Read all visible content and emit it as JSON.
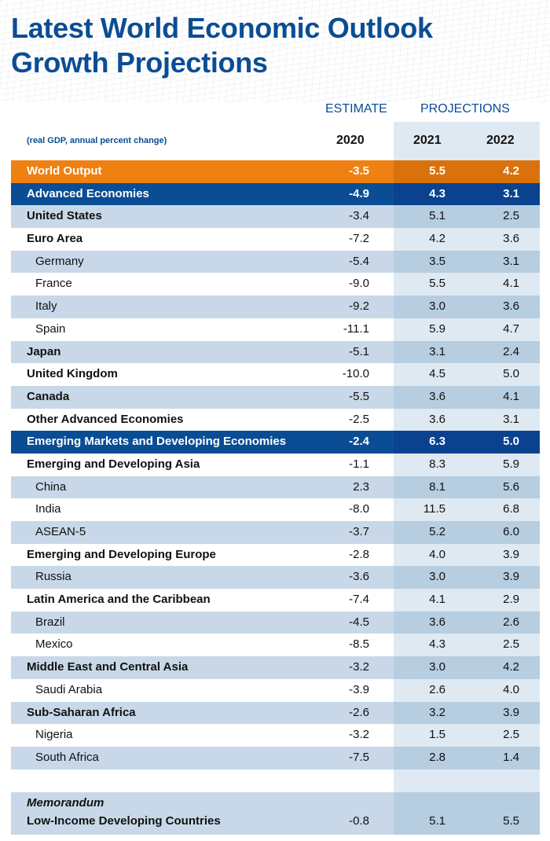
{
  "title_line1": "Latest World Economic Outlook",
  "title_line2": "Growth Projections",
  "header": {
    "estimate": "ESTIMATE",
    "projections": "PROJECTIONS",
    "note": "(real GDP, annual percent change)",
    "years": [
      "2020",
      "2021",
      "2022"
    ]
  },
  "colors": {
    "title": "#0a4d94",
    "world_row": "#ef8012",
    "group_row": "#0a4d94",
    "shaded_row": "#c8d8e8"
  },
  "chart_data": {
    "type": "table",
    "title": "Latest World Economic Outlook Growth Projections",
    "subtitle": "(real GDP, annual percent change)",
    "columns": [
      "2020",
      "2021",
      "2022"
    ],
    "column_groups": [
      {
        "label": "ESTIMATE",
        "columns": [
          "2020"
        ]
      },
      {
        "label": "PROJECTIONS",
        "columns": [
          "2021",
          "2022"
        ]
      }
    ],
    "rows": [
      {
        "label": "World Output",
        "style": "world",
        "values": [
          "-3.5",
          "5.5",
          "4.2"
        ]
      },
      {
        "label": "Advanced Economies",
        "style": "group",
        "values": [
          "-4.9",
          "4.3",
          "3.1"
        ]
      },
      {
        "label": "United States",
        "style": "bold",
        "values": [
          "-3.4",
          "5.1",
          "2.5"
        ]
      },
      {
        "label": "Euro Area",
        "style": "bold",
        "values": [
          "-7.2",
          "4.2",
          "3.6"
        ]
      },
      {
        "label": "Germany",
        "style": "indent",
        "values": [
          "-5.4",
          "3.5",
          "3.1"
        ]
      },
      {
        "label": "France",
        "style": "indent",
        "values": [
          "-9.0",
          "5.5",
          "4.1"
        ]
      },
      {
        "label": "Italy",
        "style": "indent",
        "values": [
          "-9.2",
          "3.0",
          "3.6"
        ]
      },
      {
        "label": "Spain",
        "style": "indent",
        "values": [
          "-11.1",
          "5.9",
          "4.7"
        ]
      },
      {
        "label": "Japan",
        "style": "bold",
        "values": [
          "-5.1",
          "3.1",
          "2.4"
        ]
      },
      {
        "label": "United Kingdom",
        "style": "bold",
        "values": [
          "-10.0",
          "4.5",
          "5.0"
        ]
      },
      {
        "label": "Canada",
        "style": "bold",
        "values": [
          "-5.5",
          "3.6",
          "4.1"
        ]
      },
      {
        "label": "Other Advanced Economies",
        "style": "bold",
        "values": [
          "-2.5",
          "3.6",
          "3.1"
        ]
      },
      {
        "label": "Emerging Markets and Developing Economies",
        "style": "group",
        "values": [
          "-2.4",
          "6.3",
          "5.0"
        ]
      },
      {
        "label": "Emerging and Developing Asia",
        "style": "bold",
        "values": [
          "-1.1",
          "8.3",
          "5.9"
        ]
      },
      {
        "label": "China",
        "style": "indent",
        "values": [
          "2.3",
          "8.1",
          "5.6"
        ]
      },
      {
        "label": "India",
        "style": "indent",
        "values": [
          "-8.0",
          "11.5",
          "6.8"
        ]
      },
      {
        "label": "ASEAN-5",
        "style": "indent",
        "values": [
          "-3.7",
          "5.2",
          "6.0"
        ]
      },
      {
        "label": "Emerging and Developing Europe",
        "style": "bold",
        "values": [
          "-2.8",
          "4.0",
          "3.9"
        ]
      },
      {
        "label": "Russia",
        "style": "indent",
        "values": [
          "-3.6",
          "3.0",
          "3.9"
        ]
      },
      {
        "label": "Latin America and the Caribbean",
        "style": "bold",
        "values": [
          "-7.4",
          "4.1",
          "2.9"
        ]
      },
      {
        "label": "Brazil",
        "style": "indent",
        "values": [
          "-4.5",
          "3.6",
          "2.6"
        ]
      },
      {
        "label": "Mexico",
        "style": "indent",
        "values": [
          "-8.5",
          "4.3",
          "2.5"
        ]
      },
      {
        "label": "Middle East and Central Asia",
        "style": "bold",
        "values": [
          "-3.2",
          "3.0",
          "4.2"
        ]
      },
      {
        "label": "Saudi Arabia",
        "style": "indent",
        "values": [
          "-3.9",
          "2.6",
          "4.0"
        ]
      },
      {
        "label": "Sub-Saharan Africa",
        "style": "bold",
        "values": [
          "-2.6",
          "3.2",
          "3.9"
        ]
      },
      {
        "label": "Nigeria",
        "style": "indent",
        "values": [
          "-3.2",
          "1.5",
          "2.5"
        ]
      },
      {
        "label": "South Africa",
        "style": "indent",
        "values": [
          "-7.5",
          "2.8",
          "1.4"
        ]
      }
    ],
    "memorandum": {
      "title": "Memorandum",
      "label": "Low-Income Developing Countries",
      "values": [
        "-0.8",
        "5.1",
        "5.5"
      ]
    }
  }
}
